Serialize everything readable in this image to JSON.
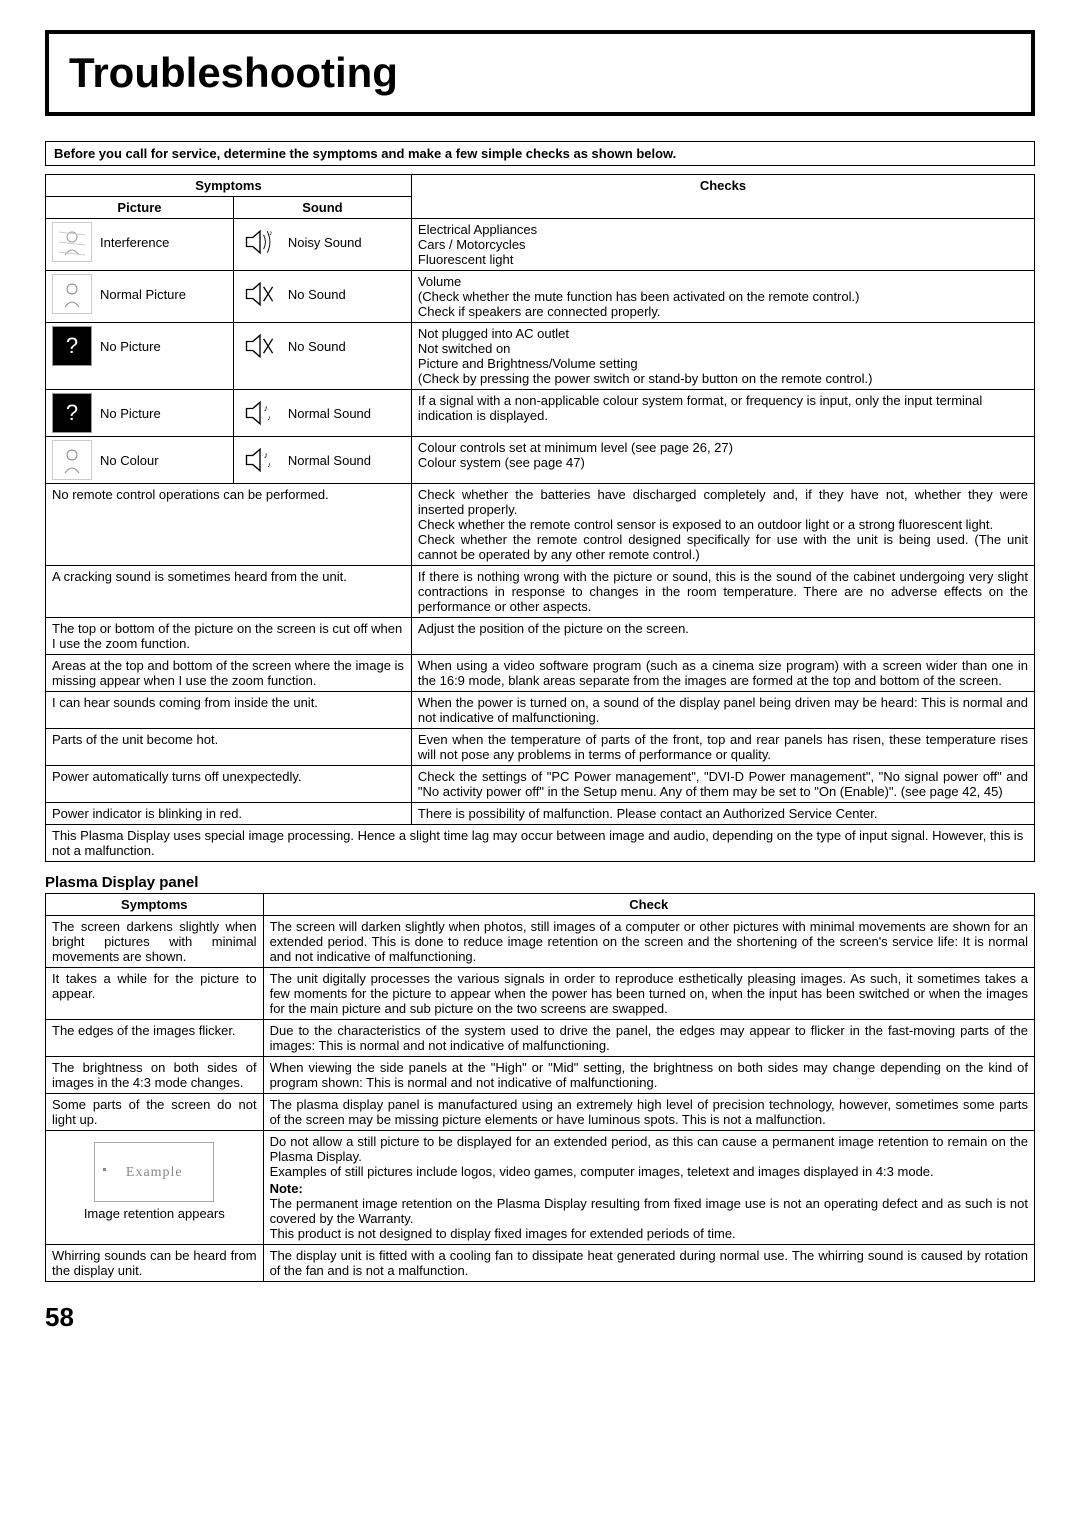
{
  "title": "Troubleshooting",
  "intro": "Before you call for service, determine the symptoms and make a few simple checks as shown below.",
  "headers": {
    "symptoms": "Symptoms",
    "picture": "Picture",
    "sound": "Sound",
    "checks": "Checks"
  },
  "rows": [
    {
      "picture": "Interference",
      "sound": "Noisy Sound",
      "check": "Electrical Appliances\nCars / Motorcycles\nFluorescent light",
      "picIcon": "interference",
      "sndIcon": "noisy"
    },
    {
      "picture": "Normal Picture",
      "sound": "No Sound",
      "check": "Volume\n(Check whether the mute function has been activated on the remote control.)\nCheck if speakers are connected properly.",
      "picIcon": "normal",
      "sndIcon": "mute"
    },
    {
      "picture": "No Picture",
      "sound": "No Sound",
      "check": "Not plugged into AC outlet\nNot switched on\nPicture and Brightness/Volume setting\n(Check by pressing the power switch or stand-by button on the remote control.)",
      "picIcon": "question-black",
      "sndIcon": "mute"
    },
    {
      "picture": "No Picture",
      "sound": "Normal Sound",
      "check": "If a signal with a non-applicable colour system format, or frequency is input, only the input terminal indication is displayed.",
      "picIcon": "question-black",
      "sndIcon": "normal-sound"
    },
    {
      "picture": "No Colour",
      "sound": "Normal Sound",
      "check": "Colour controls set at minimum level (see page 26, 27)\nColour system (see page 47)",
      "picIcon": "normal",
      "sndIcon": "normal-sound"
    }
  ],
  "textRows": [
    {
      "symptom": "No remote control operations can be performed.",
      "check": "Check whether the batteries have discharged completely and, if they have not, whether they were inserted properly.\nCheck whether the remote control sensor is exposed to an outdoor light or a strong fluorescent light.\nCheck whether the remote control designed specifically for use with the unit is being used. (The unit cannot be operated by any other remote control.)"
    },
    {
      "symptom": "A cracking sound is sometimes heard from the unit.",
      "check": "If there is nothing wrong with the picture or sound, this is the sound of the cabinet undergoing very slight contractions in response to changes in the room temperature. There are no adverse effects on the performance or other aspects."
    },
    {
      "symptom": "The top or bottom of the picture on the screen is cut off when I use the zoom function.",
      "check": "Adjust the position of the picture on the screen."
    },
    {
      "symptom": "Areas at the top and bottom of the screen where the image is missing appear when I use the zoom function.",
      "check": "When using a video software program (such as a cinema size program) with a screen wider than one in the 16:9 mode, blank areas separate from the images are formed at the top and bottom of the screen."
    },
    {
      "symptom": "I can hear sounds coming from inside the unit.",
      "check": "When the power is turned on, a sound of the display panel being driven may be heard: This is normal and not indicative of malfunctioning."
    },
    {
      "symptom": "Parts of the unit become hot.",
      "check": "Even when the temperature of parts of the front, top and rear panels has risen, these temperature rises will not pose any problems in terms of performance or quality."
    },
    {
      "symptom": "Power automatically turns off unexpectedly.",
      "check": "Check the settings of \"PC Power management\", \"DVI-D Power management\", \"No signal power off\" and \"No activity power off\" in the Setup menu. Any of them may be set to \"On (Enable)\". (see page 42, 45)"
    },
    {
      "symptom": "Power indicator is blinking in red.",
      "check": "There is possibility of malfunction. Please contact an Authorized Service Center."
    }
  ],
  "footnote": "This Plasma Display uses special image processing. Hence a slight time lag may occur between image and audio, depending on the type of input signal. However, this is not a malfunction.",
  "plasma": {
    "title": "Plasma Display panel",
    "headers": {
      "symptoms": "Symptoms",
      "check": "Check"
    },
    "rows": [
      {
        "symptom": "The screen darkens slightly when bright pictures with minimal movements are shown.",
        "check": "The screen will darken slightly when photos, still images of a computer or other pictures with minimal movements are shown for an extended period. This is done to reduce image retention on the screen and the shortening of the screen's service life: It is normal and not indicative of malfunctioning."
      },
      {
        "symptom": "It takes a while for the picture to appear.",
        "check": "The unit digitally processes the various signals in order to reproduce esthetically pleasing images. As such, it sometimes takes a few moments for the picture to appear when the power has been turned on, when the input has been switched or when the images for the main picture and sub picture on the two screens are swapped."
      },
      {
        "symptom": "The edges of the images flicker.",
        "check": "Due to the characteristics of the system used to drive the panel, the edges may appear to flicker in the fast-moving parts of the images: This is normal and not indicative of malfunctioning."
      },
      {
        "symptom": "The brightness on both sides of images in the 4:3 mode changes.",
        "check": "When viewing the side panels at the \"High\" or \"Mid\" setting, the brightness on both sides may change depending on the kind of program shown: This is normal and not indicative of malfunctioning."
      },
      {
        "symptom": "Some parts of the screen do not light up.",
        "check": "The plasma display panel is manufactured using an extremely high level of precision technology, however, sometimes some parts of the screen may be missing picture elements or have luminous spots. This is not a malfunction."
      },
      {
        "symptom": "Image retention appears",
        "check": "Do not allow a still picture to be displayed for an extended period, as this can cause a permanent image retention to remain on the Plasma Display.\nExamples of still pictures include logos, video games, computer images, teletext and images displayed in 4:3 mode.",
        "note": "Note:",
        "noteText": "The permanent image retention on the Plasma Display resulting from fixed image use is not an operating defect and as such is not covered by the Warranty.\nThis product is not designed to display fixed images for extended periods of time.",
        "hasExample": true,
        "exampleLabel": "Example"
      },
      {
        "symptom": "Whirring sounds can be heard from the display unit.",
        "check": "The display unit is fitted with a cooling fan to dissipate heat generated during normal use. The whirring sound is caused by rotation of the fan and is not a malfunction."
      }
    ]
  },
  "pageNum": "58"
}
